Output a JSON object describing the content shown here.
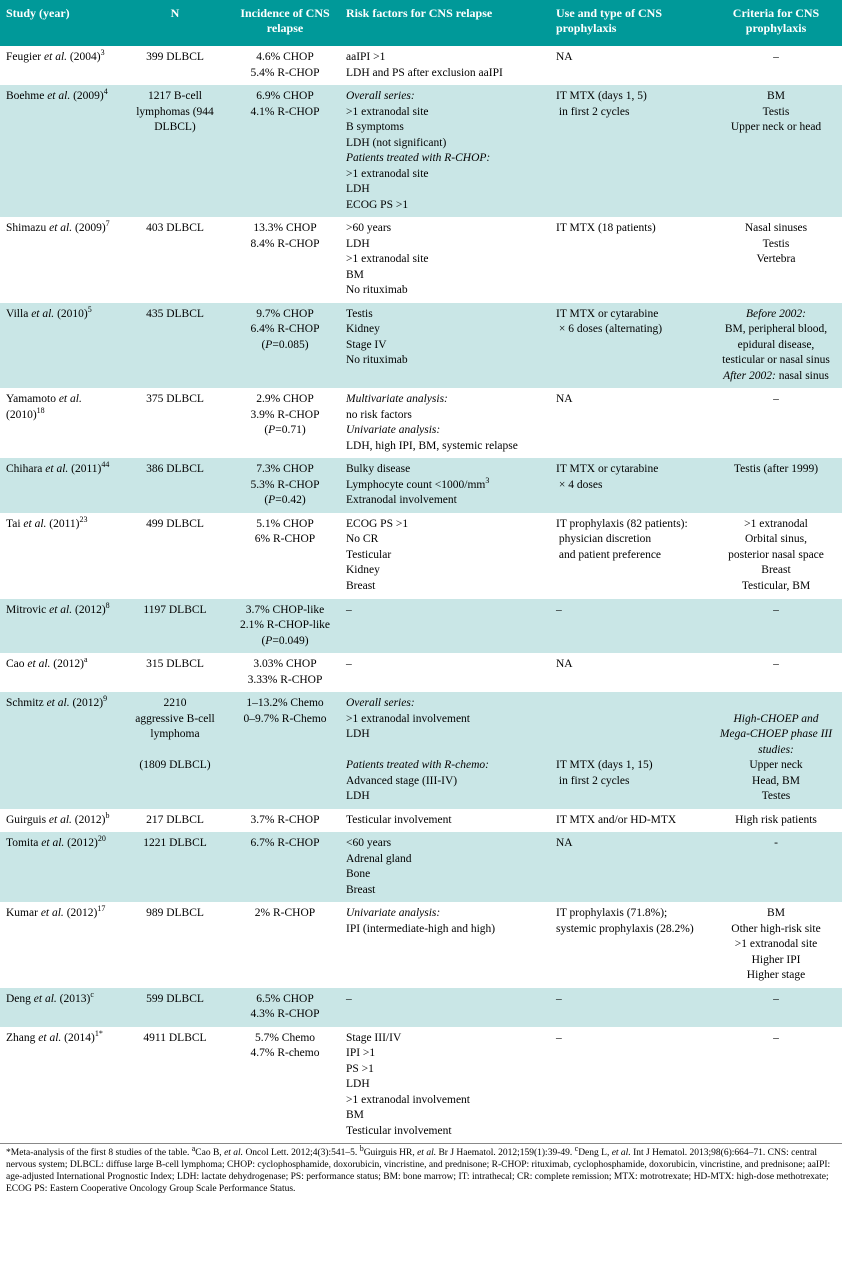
{
  "header": {
    "study": "Study (year)",
    "n": "N",
    "incidence": "Incidence of CNS relapse",
    "risk": "Risk factors for CNS relapse",
    "use": "Use and type of CNS prophylaxis",
    "criteria": "Criteria for CNS prophylaxis"
  },
  "rows": [
    {
      "study_author": "Feugier",
      "study_rest": "et al.",
      "year": "(2004)",
      "sup": "3",
      "n": "399 DLBCL",
      "incidence": "4.6% CHOP\n5.4% R-CHOP",
      "risk": "aaIPI >1\nLDH and PS after exclusion aaIPI",
      "use": "NA",
      "criteria": "–",
      "shade": false
    },
    {
      "study_author": "Boehme",
      "study_rest": "et al.",
      "year": "(2009)",
      "sup": "4",
      "n": "1217 B-cell lymphomas (944 DLBCL)",
      "incidence": "6.9% CHOP\n4.1% R-CHOP",
      "risk_html": "<span class='em'>Overall series:</span>\n>1 extranodal site\nB symptoms\nLDH (not significant)\n<span class='em'>Patients treated with R-CHOP:</span>\n>1 extranodal site\nLDH\nECOG PS >1",
      "use": "IT MTX (days 1, 5)\n in first 2 cycles",
      "criteria": "BM\nTestis\nUpper neck or head",
      "shade": true
    },
    {
      "study_author": "Shimazu",
      "study_rest": "et al.",
      "year": "(2009)",
      "sup": "7",
      "n": "403 DLBCL",
      "incidence": "13.3% CHOP\n8.4% R-CHOP",
      "risk": ">60 years\nLDH\n>1 extranodal site\nBM\nNo rituximab",
      "use": "IT MTX (18 patients)",
      "criteria": "Nasal sinuses\nTestis\nVertebra",
      "shade": false
    },
    {
      "study_author": "Villa",
      "study_rest": "et al.",
      "year": "(2010)",
      "sup": "5",
      "n": "435 DLBCL",
      "incidence_html": "9.7% CHOP\n6.4% R-CHOP\n(<span class='em'>P</span>=0.085)",
      "risk": "Testis\nKidney\nStage IV\nNo rituximab",
      "use": "IT MTX or cytarabine\n × 6 doses (alternating)",
      "criteria_html": "<span class='em'>Before 2002:</span>\nBM, peripheral blood,\nepidural disease,\ntesticular or nasal sinus\n<span class='em'>After 2002:</span> nasal sinus",
      "shade": true
    },
    {
      "study_author": "Yamamoto",
      "study_rest": "et al.",
      "year": "(2010)",
      "sup": "18",
      "n": "375 DLBCL",
      "incidence_html": "2.9% CHOP\n3.9% R-CHOP\n(<span class='em'>P</span>=0.71)",
      "risk_html": "<span class='em'>Multivariate analysis:</span>\nno risk factors\n<span class='em'>Univariate analysis:</span>\nLDH, high IPI, BM, systemic relapse",
      "use": "NA",
      "criteria": "–",
      "shade": false
    },
    {
      "study_author": "Chihara",
      "study_rest": "et al.",
      "year": "(2011)",
      "sup": "44",
      "n": "386 DLBCL",
      "incidence_html": "7.3% CHOP\n5.3% R-CHOP\n(<span class='em'>P</span>=0.42)",
      "risk_html": "Bulky disease\nLymphocyte count <1000/mm<sup>3</sup>\nExtranodal involvement",
      "use": "IT MTX or cytarabine\n × 4 doses",
      "criteria": "Testis (after 1999)",
      "shade": true
    },
    {
      "study_author": "Tai",
      "study_rest": "et al.",
      "year": "(2011)",
      "sup": "23",
      "n": "499 DLBCL",
      "incidence": "5.1% CHOP\n6% R-CHOP",
      "risk": "ECOG PS >1\nNo CR\nTesticular\nKidney\nBreast",
      "use": "IT prophylaxis (82 patients):\n physician discretion\n and patient preference",
      "criteria": ">1 extranodal\nOrbital sinus,\nposterior nasal space\nBreast\nTesticular, BM",
      "shade": false
    },
    {
      "study_author": "Mitrovic",
      "study_rest": "et al.",
      "year": "(2012)",
      "sup": "8",
      "n": "1197 DLBCL",
      "incidence_html": "3.7% CHOP-like\n2.1% R-CHOP-like\n(<span class='em'>P</span>=0.049)",
      "risk": "–",
      "use": "–",
      "criteria": "–",
      "shade": true
    },
    {
      "study_author": "Cao",
      "study_rest": "et al.",
      "year": "(2012)",
      "sup": "a",
      "n": "315 DLBCL",
      "incidence": "3.03% CHOP\n3.33% R-CHOP",
      "risk": "–",
      "use": "NA",
      "criteria": "–",
      "shade": false
    },
    {
      "study_author": "Schmitz",
      "study_rest": "et al.",
      "year": "(2012)",
      "sup": "9",
      "n": "2210\naggressive B-cell\nlymphoma\n\n(1809 DLBCL)",
      "incidence": "1–13.2% Chemo\n0–9.7% R-Chemo",
      "risk_html": "<span class='em'>Overall series:</span>\n>1 extranodal involvement\nLDH\n\n<span class='em'>Patients treated with R-chemo:</span>\nAdvanced stage (III-IV)\nLDH",
      "use": "\n\n\n\nIT MTX (days 1, 15)\n in first 2 cycles",
      "criteria_html": "\n<span class='em'>High-CHOEP and\nMega-CHOEP phase III\nstudies:</span>\nUpper neck\nHead, BM\nTestes",
      "shade": true
    },
    {
      "study_author": "Guirguis",
      "study_rest": "et al.",
      "year": "(2012)",
      "sup": "b",
      "n": "217 DLBCL",
      "incidence": "3.7% R-CHOP",
      "risk": "Testicular involvement",
      "use": "IT MTX and/or HD-MTX",
      "criteria": "High risk patients",
      "shade": false
    },
    {
      "study_author": "Tomita",
      "study_rest": "et al.",
      "year": "(2012)",
      "sup": "20",
      "n": "1221 DLBCL",
      "incidence": "6.7% R-CHOP",
      "risk": "<60 years\nAdrenal gland\nBone\nBreast",
      "use": "NA",
      "criteria": "-",
      "shade": true
    },
    {
      "study_author": "Kumar",
      "study_rest": "et al.",
      "year": "(2012)",
      "sup": "17",
      "n": "989 DLBCL",
      "incidence": "2% R-CHOP",
      "risk_html": "<span class='em'>Univariate analysis:</span>\nIPI (intermediate-high and high)",
      "use": "IT prophylaxis (71.8%);\nsystemic prophylaxis (28.2%)",
      "criteria": "BM\nOther high-risk site\n>1 extranodal site\nHigher IPI\nHigher stage",
      "shade": false
    },
    {
      "study_author": "Deng",
      "study_rest": "et al.",
      "year": "(2013)",
      "sup": "c",
      "n": "599 DLBCL",
      "incidence": "6.5% CHOP\n4.3% R-CHOP",
      "risk": "–",
      "use": "–",
      "criteria": "–",
      "shade": true
    },
    {
      "study_author": "Zhang",
      "study_rest": "et al.",
      "year": "(2014)",
      "sup": "1*",
      "n": "4911 DLBCL",
      "incidence": "5.7% Chemo\n4.7% R-chemo",
      "risk": "Stage III/IV\nIPI >1\nPS >1\nLDH\n>1 extranodal involvement\nBM\nTesticular involvement",
      "use": "–",
      "criteria": "–",
      "shade": false
    }
  ],
  "footnote_html": "*Meta-analysis of the first 8 studies of the table. <sup>a</sup>Cao B, <span class='em'>et al.</span> Oncol Lett. 2012;4(3):541–5. <sup>b</sup>Guirguis HR, <span class='em'>et al.</span> Br J Haematol. 2012;159(1):39-49. <sup>c</sup>Deng L, <span class='em'>et al.</span> Int J Hematol. 2013;98(6):664–71. CNS: central nervous system; DLBCL: diffuse large B-cell lymphoma; CHOP: cyclophosphamide, doxorubicin, vincristine, and prednisone; R-CHOP: rituximab, cyclophosphamide, doxorubicin, vincristine, and prednisone; aaIPI: age-adjusted International Prognostic Index; LDH: lactate dehydrogenase; PS: performance status; BM: bone marrow; IT: intrathecal; CR: complete remission; MTX: motrotrexate; HD-MTX: high-dose methotrexate; ECOG PS: Eastern Cooperative Oncology Group Scale Performance Status.",
  "colors": {
    "header_bg": "#009999",
    "header_fg": "#ffffff",
    "shade_bg": "#c9e6e6",
    "text": "#000000"
  }
}
